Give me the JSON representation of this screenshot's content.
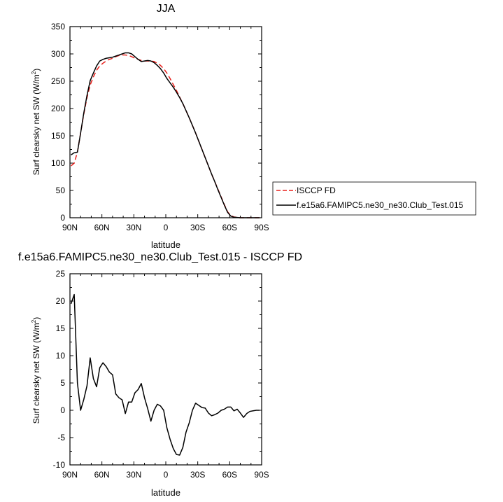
{
  "chart_data": [
    {
      "type": "line",
      "title": "JJA",
      "xlabel": "latitude",
      "ylabel": "Surf clearsky net SW (W/m²)",
      "ylabel_main": "Surf clearsky net SW (W/m",
      "ylabel_sup": "2",
      "ylabel_tail": ")",
      "xlim": [
        90,
        -90
      ],
      "ylim": [
        0,
        350
      ],
      "x_ticks": [
        90,
        60,
        30,
        0,
        -30,
        -60,
        -90
      ],
      "x_tick_labels": [
        "90N",
        "60N",
        "30N",
        "0",
        "30S",
        "60S",
        "90S"
      ],
      "y_ticks": [
        0,
        50,
        100,
        150,
        200,
        250,
        300,
        350
      ],
      "y_tick_labels": [
        "0",
        "50",
        "100",
        "150",
        "200",
        "250",
        "300",
        "350"
      ],
      "legend_position": "right",
      "series": [
        {
          "name": "ISCCP FD",
          "color": "#e8201c",
          "dash": "dashed",
          "x": [
            89,
            86,
            83,
            80,
            77,
            74,
            71,
            68,
            65,
            62,
            59,
            56,
            53,
            50,
            47,
            44,
            41,
            38,
            35,
            32,
            29,
            26,
            23,
            20,
            17,
            14,
            11,
            8,
            5,
            2,
            -1,
            -4,
            -7,
            -10,
            -13,
            -16,
            -19,
            -22,
            -25,
            -28,
            -31,
            -34,
            -37,
            -40,
            -43,
            -46,
            -49,
            -52,
            -55,
            -58,
            -61,
            -64,
            -67,
            -70,
            -73,
            -76,
            -79,
            -82,
            -85,
            -88
          ],
          "y": [
            95,
            100,
            120,
            155,
            190,
            220,
            243,
            258,
            270,
            278,
            283,
            287,
            290,
            292,
            295,
            297,
            298,
            298,
            297,
            295,
            292,
            290,
            288,
            287,
            287,
            287,
            286,
            283,
            279,
            273,
            265,
            255,
            244,
            233,
            221,
            209,
            196,
            183,
            169,
            155,
            140,
            125,
            110,
            95,
            80,
            66,
            52,
            38,
            24,
            11,
            4,
            1.5,
            0.5,
            0,
            0,
            0,
            0,
            0,
            0,
            0
          ]
        },
        {
          "name": "f.e15a6.FAMIPC5.ne30_ne30.Club_Test.015",
          "color": "#000000",
          "dash": "solid",
          "x": [
            89,
            86,
            83,
            80,
            77,
            74,
            71,
            68,
            65,
            62,
            59,
            56,
            53,
            50,
            47,
            44,
            41,
            38,
            35,
            32,
            29,
            26,
            23,
            20,
            17,
            14,
            11,
            8,
            5,
            2,
            -1,
            -4,
            -7,
            -10,
            -13,
            -16,
            -19,
            -22,
            -25,
            -28,
            -31,
            -34,
            -37,
            -40,
            -43,
            -46,
            -49,
            -52,
            -55,
            -58,
            -61,
            -64,
            -67,
            -70,
            -73,
            -76,
            -79,
            -82,
            -85,
            -88
          ],
          "y": [
            115,
            119,
            120,
            155,
            192,
            224,
            251,
            265,
            278,
            287,
            290,
            292,
            293,
            294,
            296,
            298,
            300,
            302,
            302,
            300,
            295,
            290,
            286,
            287,
            288,
            287,
            284,
            279,
            273,
            265,
            255,
            247,
            239,
            230,
            220,
            209,
            196,
            183,
            169,
            155,
            140,
            125,
            110,
            95,
            80,
            66,
            51,
            37,
            23,
            10,
            3,
            1,
            0.5,
            0,
            0,
            0,
            0,
            0,
            0,
            0
          ]
        }
      ]
    },
    {
      "type": "line",
      "title": "f.e15a6.FAMIPC5.ne30_ne30.Club_Test.015 - ISCCP FD",
      "xlabel": "latitude",
      "ylabel": "Surf clearsky net SW (W/m²)",
      "ylabel_main": "Surf clearsky net SW (W/m",
      "ylabel_sup": "2",
      "ylabel_tail": ")",
      "xlim": [
        90,
        -90
      ],
      "ylim": [
        -10,
        25
      ],
      "x_ticks": [
        90,
        60,
        30,
        0,
        -30,
        -60,
        -90
      ],
      "x_tick_labels": [
        "90N",
        "60N",
        "30N",
        "0",
        "30S",
        "60S",
        "90S"
      ],
      "y_ticks": [
        -10,
        -5,
        0,
        5,
        10,
        15,
        20,
        25
      ],
      "y_tick_labels": [
        "-10",
        "-5",
        "0",
        "5",
        "10",
        "15",
        "20",
        "25"
      ],
      "series": [
        {
          "color": "#000000",
          "dash": "solid",
          "x": [
            89,
            86,
            83,
            80,
            77,
            74,
            71,
            68,
            65,
            62,
            59,
            56,
            53,
            50,
            47,
            44,
            41,
            38,
            35,
            32,
            29,
            26,
            23,
            20,
            17,
            14,
            11,
            8,
            5,
            2,
            -1,
            -4,
            -7,
            -10,
            -13,
            -16,
            -19,
            -22,
            -25,
            -28,
            -31,
            -34,
            -37,
            -40,
            -43,
            -46,
            -49,
            -52,
            -55,
            -58,
            -61,
            -64,
            -67,
            -70,
            -73,
            -76,
            -79,
            -82,
            -85,
            -88
          ],
          "y": [
            19.5,
            21.2,
            5,
            0,
            2,
            4.5,
            9.6,
            5.8,
            4.3,
            7.8,
            8.7,
            8,
            7,
            6.5,
            3,
            2.3,
            1.9,
            -0.6,
            1.5,
            1.5,
            3.2,
            3.8,
            4.9,
            2.3,
            0.3,
            -2,
            0,
            1.1,
            0.8,
            0,
            -3.2,
            -5.3,
            -7,
            -8.1,
            -8.2,
            -6.8,
            -4,
            -2.3,
            0,
            1.3,
            0.9,
            0.5,
            0.4,
            -0.5,
            -1,
            -0.8,
            -0.5,
            0,
            0.2,
            0.6,
            0.6,
            -0.1,
            0.2,
            -0.5,
            -1.3,
            -0.6,
            -0.2,
            -0.1,
            0,
            0
          ]
        }
      ]
    }
  ]
}
